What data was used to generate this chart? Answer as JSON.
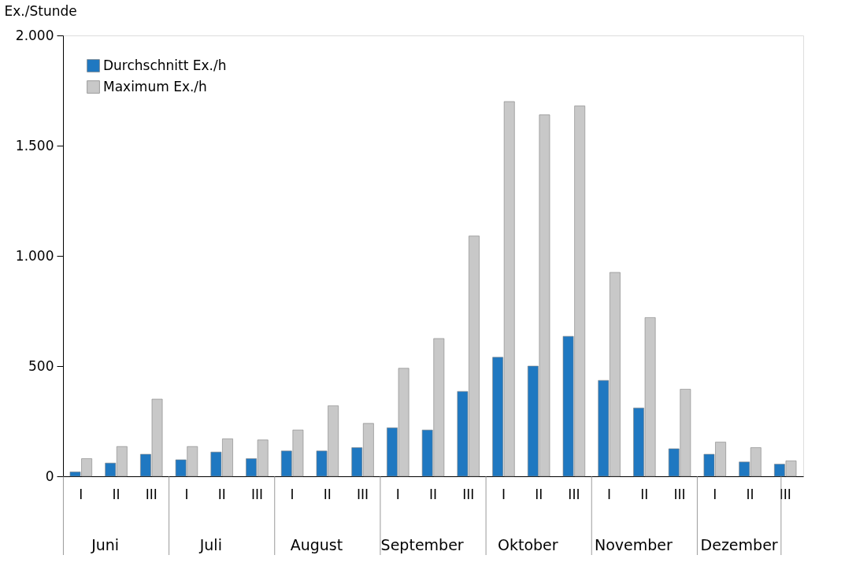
{
  "chart_data": {
    "type": "bar",
    "ylabel": "Ex./Stunde",
    "categories": [
      "I",
      "II",
      "III",
      "I",
      "II",
      "III",
      "I",
      "II",
      "III",
      "I",
      "II",
      "III",
      "I",
      "II",
      "III",
      "I",
      "II",
      "III",
      "I",
      "II",
      "III"
    ],
    "series": [
      {
        "name": "Durchschnitt Ex./h",
        "color": "#1f78c1",
        "values": [
          20,
          60,
          100,
          75,
          110,
          80,
          115,
          115,
          130,
          220,
          210,
          385,
          540,
          500,
          635,
          435,
          310,
          125,
          100,
          65,
          55
        ]
      },
      {
        "name": "Maximum Ex./h",
        "color": "#c8c8c8",
        "values": [
          80,
          135,
          350,
          135,
          170,
          165,
          210,
          320,
          240,
          490,
          625,
          1090,
          1700,
          1640,
          1680,
          925,
          720,
          395,
          155,
          130,
          70
        ]
      }
    ],
    "ylim": [
      0,
      2000
    ],
    "yticks": [
      0,
      500,
      {
        "value": 1000,
        "label": "1.000"
      },
      {
        "value": 1500,
        "label": "1.500"
      },
      {
        "value": 2000,
        "label": "2.000"
      }
    ],
    "annotations": [
      "Juni",
      "Juli",
      "August",
      "September",
      "Oktober",
      "November",
      "Dezember"
    ],
    "grid": false,
    "legend": "top left"
  }
}
